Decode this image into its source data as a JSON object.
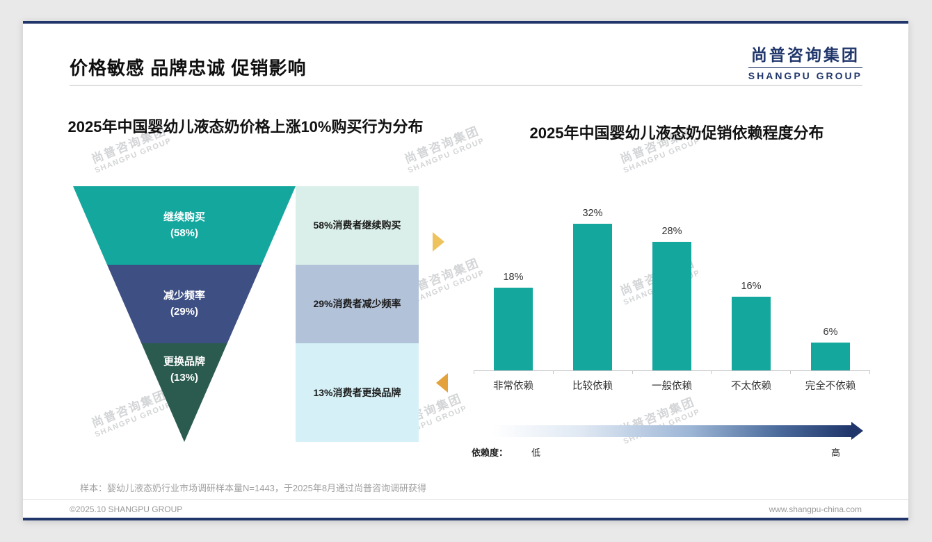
{
  "header": {
    "title": "价格敏感 品牌忠诚 促销影响",
    "logo_cn": "尚普咨询集团",
    "logo_en": "SHANGPU GROUP"
  },
  "watermark": {
    "cn": "尚普咨询集团",
    "en": "SHANGPU GROUP"
  },
  "colors": {
    "teal": "#13a79e",
    "navy": "#20366b",
    "arrow_yellow": "#eec35d",
    "arrow_orange": "#e3a23b"
  },
  "chart_data": [
    {
      "type": "funnel",
      "title": "2025年中国婴幼儿液态奶价格上涨10%购买行为分布",
      "categories": [
        "继续购买",
        "减少频率",
        "更换品牌"
      ],
      "values": [
        58,
        29,
        13
      ],
      "value_labels": [
        "(58%)",
        "(29%)",
        "(13%)"
      ],
      "annotations": [
        "58%消费者继续购买",
        "29%消费者减少频率",
        "13%消费者更换品牌"
      ],
      "colors": [
        "#13a79e",
        "#3e4f83",
        "#2b5b4f"
      ],
      "annotation_bg": [
        "#daefe9",
        "#b2c2d9",
        "#d5f1f7"
      ]
    },
    {
      "type": "bar",
      "title": "2025年中国婴幼儿液态奶促销依赖程度分布",
      "categories": [
        "非常依赖",
        "比较依赖",
        "一般依赖",
        "不太依赖",
        "完全不依赖"
      ],
      "values": [
        18,
        32,
        28,
        16,
        6
      ],
      "value_labels": [
        "18%",
        "32%",
        "28%",
        "16%",
        "6%"
      ],
      "ylim": [
        0,
        35
      ],
      "bar_color": "#13a79e",
      "grid": "off",
      "legend": "none",
      "axis_note": {
        "label": "依赖度：",
        "low": "低",
        "high": "高"
      }
    }
  ],
  "footnote": "样本：婴幼儿液态奶行业市场调研样本量N=1443，于2025年8月通过尚普咨询调研获得",
  "footer": {
    "left": "©2025.10 SHANGPU GROUP",
    "right": "www.shangpu-china.com"
  }
}
